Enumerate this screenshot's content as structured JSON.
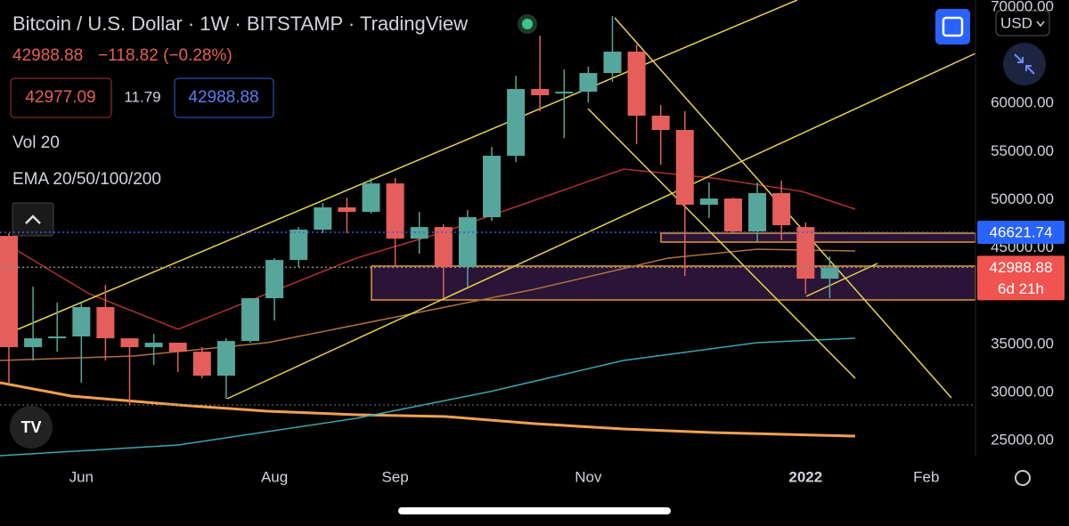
{
  "header": {
    "last": 42988.88,
    "change": "−118.82 (−0.28%)",
    "bid": 42977.09,
    "spread": 11.79,
    "ask": 42988.88,
    "volume_study": "Vol 20",
    "ema_study": "EMA 20/50/100/200",
    "currency": "USD"
  },
  "chart_data": {
    "type": "candlestick",
    "title": "Bitcoin / U.S. Dollar · 1W · BITSTAMP · TradingView",
    "categories": [
      null,
      null,
      null,
      "Jun",
      null,
      null,
      null,
      null,
      null,
      null,
      null,
      "Aug",
      null,
      null,
      null,
      null,
      "Sep",
      null,
      null,
      null,
      null,
      null,
      null,
      null,
      "Nov",
      null,
      null,
      null,
      null,
      null,
      null,
      null,
      null,
      "2022",
      null,
      null,
      null,
      null,
      "Feb"
    ],
    "open": [
      46250,
      34700,
      35620,
      35810,
      38860,
      35620,
      34700,
      35160,
      34230,
      31740,
      35340,
      39780,
      43750,
      46900,
      49210,
      48740,
      51700,
      45970,
      47170,
      43010,
      48190,
      54570,
      61500,
      61040,
      61220,
      63160,
      65380,
      58730,
      57250,
      49480,
      50130,
      46710,
      50690,
      47170,
      41810,
      null,
      null,
      null,
      null
    ],
    "high": [
      46530,
      40980,
      39320,
      39320,
      41170,
      35620,
      36080,
      35160,
      34700,
      35620,
      39780,
      43940,
      47170,
      49670,
      50220,
      52260,
      52260,
      48740,
      47450,
      48930,
      55490,
      62880,
      67040,
      63530,
      63810,
      69080,
      66120,
      59830,
      59190,
      51790,
      50220,
      51790,
      51980,
      47640,
      44120,
      null,
      null,
      null,
      null
    ],
    "low": [
      31000,
      33310,
      34230,
      31000,
      33310,
      28690,
      32850,
      32110,
      31460,
      29340,
      35160,
      37470,
      43010,
      46530,
      46530,
      48560,
      43010,
      44400,
      39780,
      40980,
      47820,
      53920,
      59190,
      56410,
      60110,
      62240,
      55770,
      53640,
      42090,
      48100,
      46530,
      45600,
      45790,
      40240,
      39780,
      null,
      null,
      null,
      null
    ],
    "close": [
      34700,
      35620,
      35810,
      38860,
      35620,
      34700,
      35160,
      34230,
      31740,
      35340,
      39780,
      43750,
      46900,
      49210,
      48740,
      51700,
      45970,
      47170,
      43010,
      48190,
      54570,
      61500,
      60850,
      61220,
      63160,
      65380,
      58730,
      57250,
      49480,
      50130,
      46710,
      50690,
      47360,
      41810,
      42988.88,
      null,
      null,
      null,
      null
    ],
    "up_color": "#56a69b",
    "down_color": "#e45f5b",
    "ylim": [
      23340,
      70740
    ],
    "yticks": [
      {
        "value": 70000,
        "label": "70000.00"
      },
      {
        "value": 60000,
        "label": "60000.00"
      },
      {
        "value": 55000,
        "label": "55000.00"
      },
      {
        "value": 50000,
        "label": "50000.00"
      },
      {
        "value": 45000,
        "label": "45000.00"
      },
      {
        "value": 35000,
        "label": "35000.00"
      },
      {
        "value": 30000,
        "label": "30000.00"
      },
      {
        "value": 25000,
        "label": "25000.00"
      }
    ],
    "price_labels": [
      {
        "value": 46621.74,
        "color": "#2962ff"
      },
      {
        "value": 42988.88,
        "color": "#f05350",
        "countdown": "6d 21h"
      }
    ],
    "grid": false
  }
}
